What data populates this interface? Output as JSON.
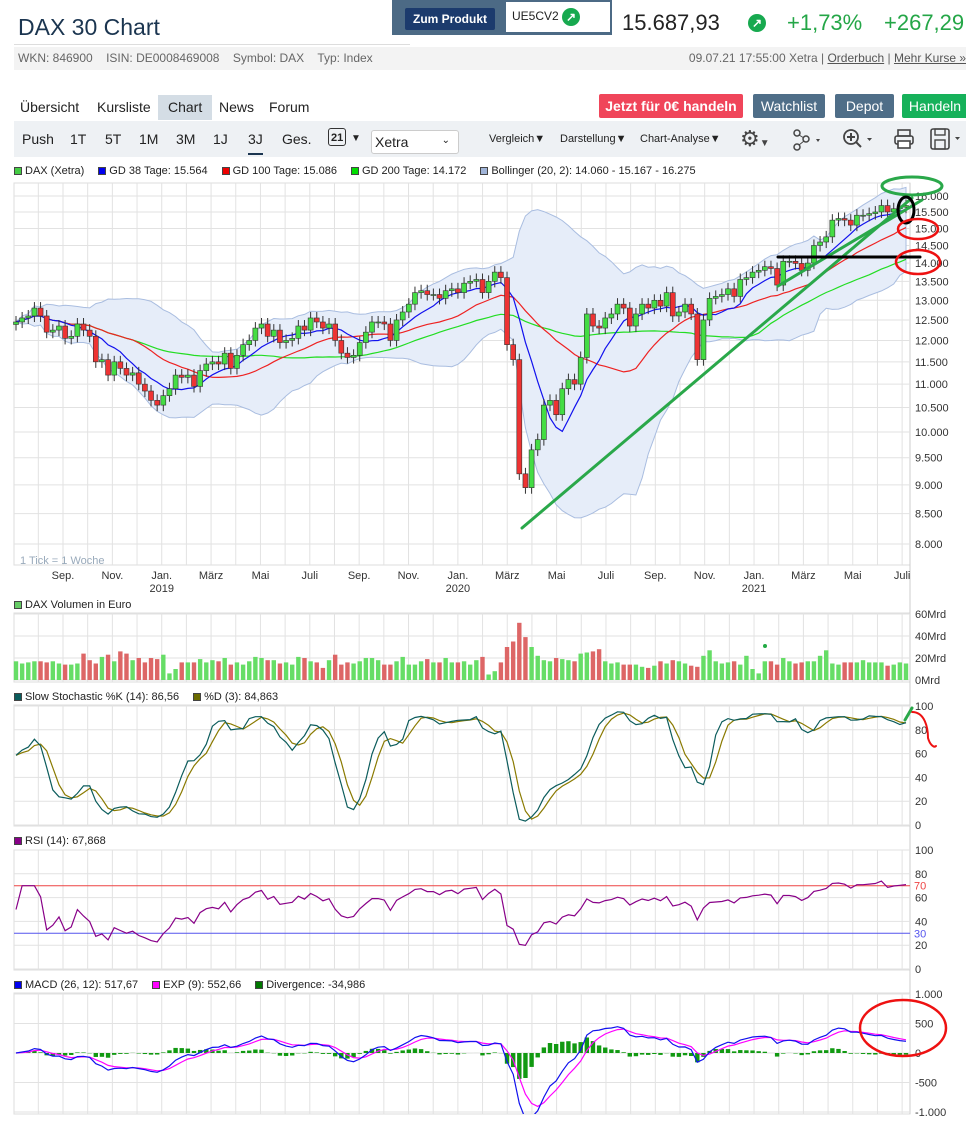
{
  "header": {
    "title": "DAX 30 Chart",
    "product_button": "Zum Produkt",
    "product_code": "UE5CV2",
    "price": "15.687,93",
    "change_pct": "+1,73%",
    "change_abs": "+267,29",
    "positive_color": "#24a647"
  },
  "info": {
    "wkn": "WKN: 846900",
    "isin": "ISIN: DE0008469008",
    "symbol": "Symbol: DAX",
    "type": "Typ: Index",
    "timestamp": "09.07.21 17:55:00 Xetra",
    "orderbook": "Orderbuch",
    "more": "Mehr Kurse »"
  },
  "nav": {
    "tabs": [
      {
        "label": "Übersicht"
      },
      {
        "label": "Kursliste"
      },
      {
        "label": "Chart",
        "active": true
      },
      {
        "label": "News"
      },
      {
        "label": "Forum"
      }
    ],
    "buttons": {
      "trade_free": "Jetzt für 0€ handeln",
      "watchlist": "Watchlist",
      "depot": "Depot",
      "trade": "Handeln"
    }
  },
  "toolbar": {
    "ranges": [
      "Push",
      "1T",
      "5T",
      "1M",
      "3M",
      "1J",
      "3J",
      "Ges."
    ],
    "active_range": "3J",
    "calendar_day": "21",
    "exchange": "Xetra",
    "menus": [
      "Vergleich",
      "Darstellung",
      "Chart-Analyse"
    ],
    "icons": [
      "calendar-icon",
      "gear-icon",
      "share-nodes-icon",
      "zoom-in-icon",
      "print-icon",
      "save-icon"
    ]
  },
  "legends": {
    "main": [
      {
        "label": "DAX (Xetra)",
        "color": "#44cc44"
      },
      {
        "label": "GD 38 Tage: 15.564",
        "color": "#0000ee"
      },
      {
        "label": "GD 100 Tage: 15.086",
        "color": "#ee0000"
      },
      {
        "label": "GD 200 Tage: 14.172",
        "color": "#00dd00"
      },
      {
        "label": "Bollinger (20, 2): 14.060 - 15.167 - 16.275",
        "color": "#a0b4d8"
      }
    ],
    "volume": [
      {
        "label": "DAX Volumen in Euro",
        "color": "#66cc66"
      }
    ],
    "stoch": [
      {
        "label": "Slow Stochastic %K (14): 86,56",
        "color": "#0b5c5c"
      },
      {
        "label": "%D (3): 84,863",
        "color": "#6b6b00"
      }
    ],
    "rsi": [
      {
        "label": "RSI (14): 67,868",
        "color": "#880088"
      }
    ],
    "macd": [
      {
        "label": "MACD (26, 12): 517,67",
        "color": "#0000ee"
      },
      {
        "label": "EXP (9): 552,66",
        "color": "#ff00ff"
      },
      {
        "label": "Divergence: -34,986",
        "color": "#007700"
      }
    ]
  },
  "chart_data": {
    "type": "candlestick",
    "tick_note": "1 Tick = 1 Woche",
    "x_ticks": [
      {
        "label": "Sep."
      },
      {
        "label": "Nov."
      },
      {
        "label": "Jan.",
        "year": "2019"
      },
      {
        "label": "März"
      },
      {
        "label": "Mai"
      },
      {
        "label": "Juli"
      },
      {
        "label": "Sep."
      },
      {
        "label": "Nov."
      },
      {
        "label": "Jan.",
        "year": "2020"
      },
      {
        "label": "März"
      },
      {
        "label": "Mai"
      },
      {
        "label": "Juli"
      },
      {
        "label": "Sep."
      },
      {
        "label": "Nov."
      },
      {
        "label": "Jan.",
        "year": "2021"
      },
      {
        "label": "März"
      },
      {
        "label": "Mai"
      },
      {
        "label": "Juli"
      }
    ],
    "price_axis": {
      "scale": "log",
      "ticks": [
        "8.000",
        "8.500",
        "9.000",
        "9.500",
        "10.000",
        "10.500",
        "11.000",
        "11.500",
        "12.000",
        "12.500",
        "13.000",
        "13.500",
        "14.000",
        "14.500",
        "15.000",
        "15.500",
        "16.000"
      ],
      "tick_values": [
        8000,
        8500,
        9000,
        9500,
        10000,
        10500,
        11000,
        11500,
        12000,
        12500,
        13000,
        13500,
        14000,
        14500,
        15000,
        15500,
        16000
      ]
    },
    "weekly_close": [
      12450,
      12550,
      12600,
      12800,
      12600,
      12200,
      12250,
      12350,
      12050,
      12100,
      12400,
      12250,
      12100,
      11500,
      11550,
      11200,
      11500,
      11350,
      11200,
      11250,
      11000,
      10850,
      10650,
      10550,
      10750,
      10900,
      11200,
      11150,
      11200,
      10950,
      11300,
      11450,
      11500,
      11450,
      11700,
      11350,
      11650,
      11900,
      12000,
      12300,
      12400,
      12100,
      12250,
      11950,
      12000,
      12050,
      12350,
      12250,
      12550,
      12450,
      12300,
      12400,
      12000,
      11700,
      11600,
      11650,
      11950,
      12200,
      12450,
      12450,
      12400,
      12000,
      12500,
      12700,
      12900,
      13200,
      13250,
      13150,
      13150,
      13050,
      13250,
      13300,
      13200,
      13450,
      13500,
      13550,
      13200,
      13500,
      13750,
      13600,
      11900,
      11550,
      9200,
      8950,
      9650,
      9850,
      10550,
      10650,
      10350,
      10900,
      11100,
      11000,
      11600,
      12650,
      12350,
      12300,
      12550,
      12650,
      12900,
      12800,
      12350,
      12650,
      12900,
      12800,
      13000,
      12850,
      13200,
      12600,
      12700,
      12900,
      12650,
      11550,
      12500,
      13050,
      13100,
      13150,
      13300,
      13100,
      13550,
      13600,
      13750,
      13800,
      13900,
      13850,
      13400,
      14050,
      14050,
      13990,
      13800,
      14000,
      14500,
      14600,
      14750,
      15250,
      15300,
      15250,
      15100,
      15400,
      15400,
      15450,
      15500,
      15700,
      15500,
      15600,
      15650,
      15700
    ],
    "volume_axis": {
      "ticks": [
        "0Mrd",
        "20Mrd",
        "40Mrd",
        "60Mrd"
      ],
      "tick_values": [
        0,
        20,
        40,
        60
      ]
    },
    "weekly_volume_mrd": [
      17,
      15,
      16,
      17,
      17,
      16,
      17,
      15,
      14,
      14,
      15,
      24,
      18,
      15,
      21,
      23,
      17,
      26,
      24,
      18,
      20,
      16,
      20,
      19,
      23,
      6,
      10,
      16,
      16,
      16,
      19,
      16,
      18,
      17,
      20,
      14,
      16,
      14,
      17,
      21,
      20,
      18,
      18,
      15,
      16,
      14,
      21,
      20,
      17,
      16,
      11,
      18,
      23,
      14,
      16,
      15,
      17,
      20,
      20,
      18,
      14,
      14,
      17,
      21,
      14,
      14,
      17,
      19,
      16,
      16,
      20,
      16,
      16,
      17,
      14,
      18,
      21,
      5,
      8,
      16,
      30,
      35,
      52,
      39,
      30,
      22,
      18,
      17,
      20,
      19,
      18,
      17,
      24,
      25,
      26,
      28,
      17,
      15,
      16,
      14,
      14,
      14,
      12,
      11,
      13,
      17,
      15,
      18,
      17,
      15,
      13,
      12,
      22,
      27,
      17,
      15,
      16,
      17,
      14,
      22,
      10,
      6,
      17,
      17,
      14,
      20,
      17,
      15,
      16,
      17,
      17,
      22,
      27,
      15,
      14,
      16,
      16,
      16,
      18,
      16,
      16,
      16,
      13,
      14,
      16,
      15
    ],
    "stoch_axis": {
      "ticks": [
        "0",
        "20",
        "40",
        "60",
        "80",
        "100"
      ],
      "tick_values": [
        0,
        20,
        40,
        60,
        80,
        100
      ]
    },
    "rsi_axis": {
      "ticks": [
        "0",
        "20",
        "40",
        "60",
        "80",
        "100"
      ],
      "tick_values": [
        0,
        20,
        40,
        60,
        80,
        100
      ],
      "upper_band": {
        "label": "70",
        "value": 70,
        "color": "#ee4444"
      },
      "lower_band": {
        "label": "30",
        "value": 30,
        "color": "#5555ee"
      }
    },
    "macd_axis": {
      "ticks": [
        "-1.000",
        "-500",
        "0",
        "500",
        "1.000"
      ],
      "tick_values": [
        -1000,
        -500,
        0,
        500,
        1000
      ]
    }
  }
}
